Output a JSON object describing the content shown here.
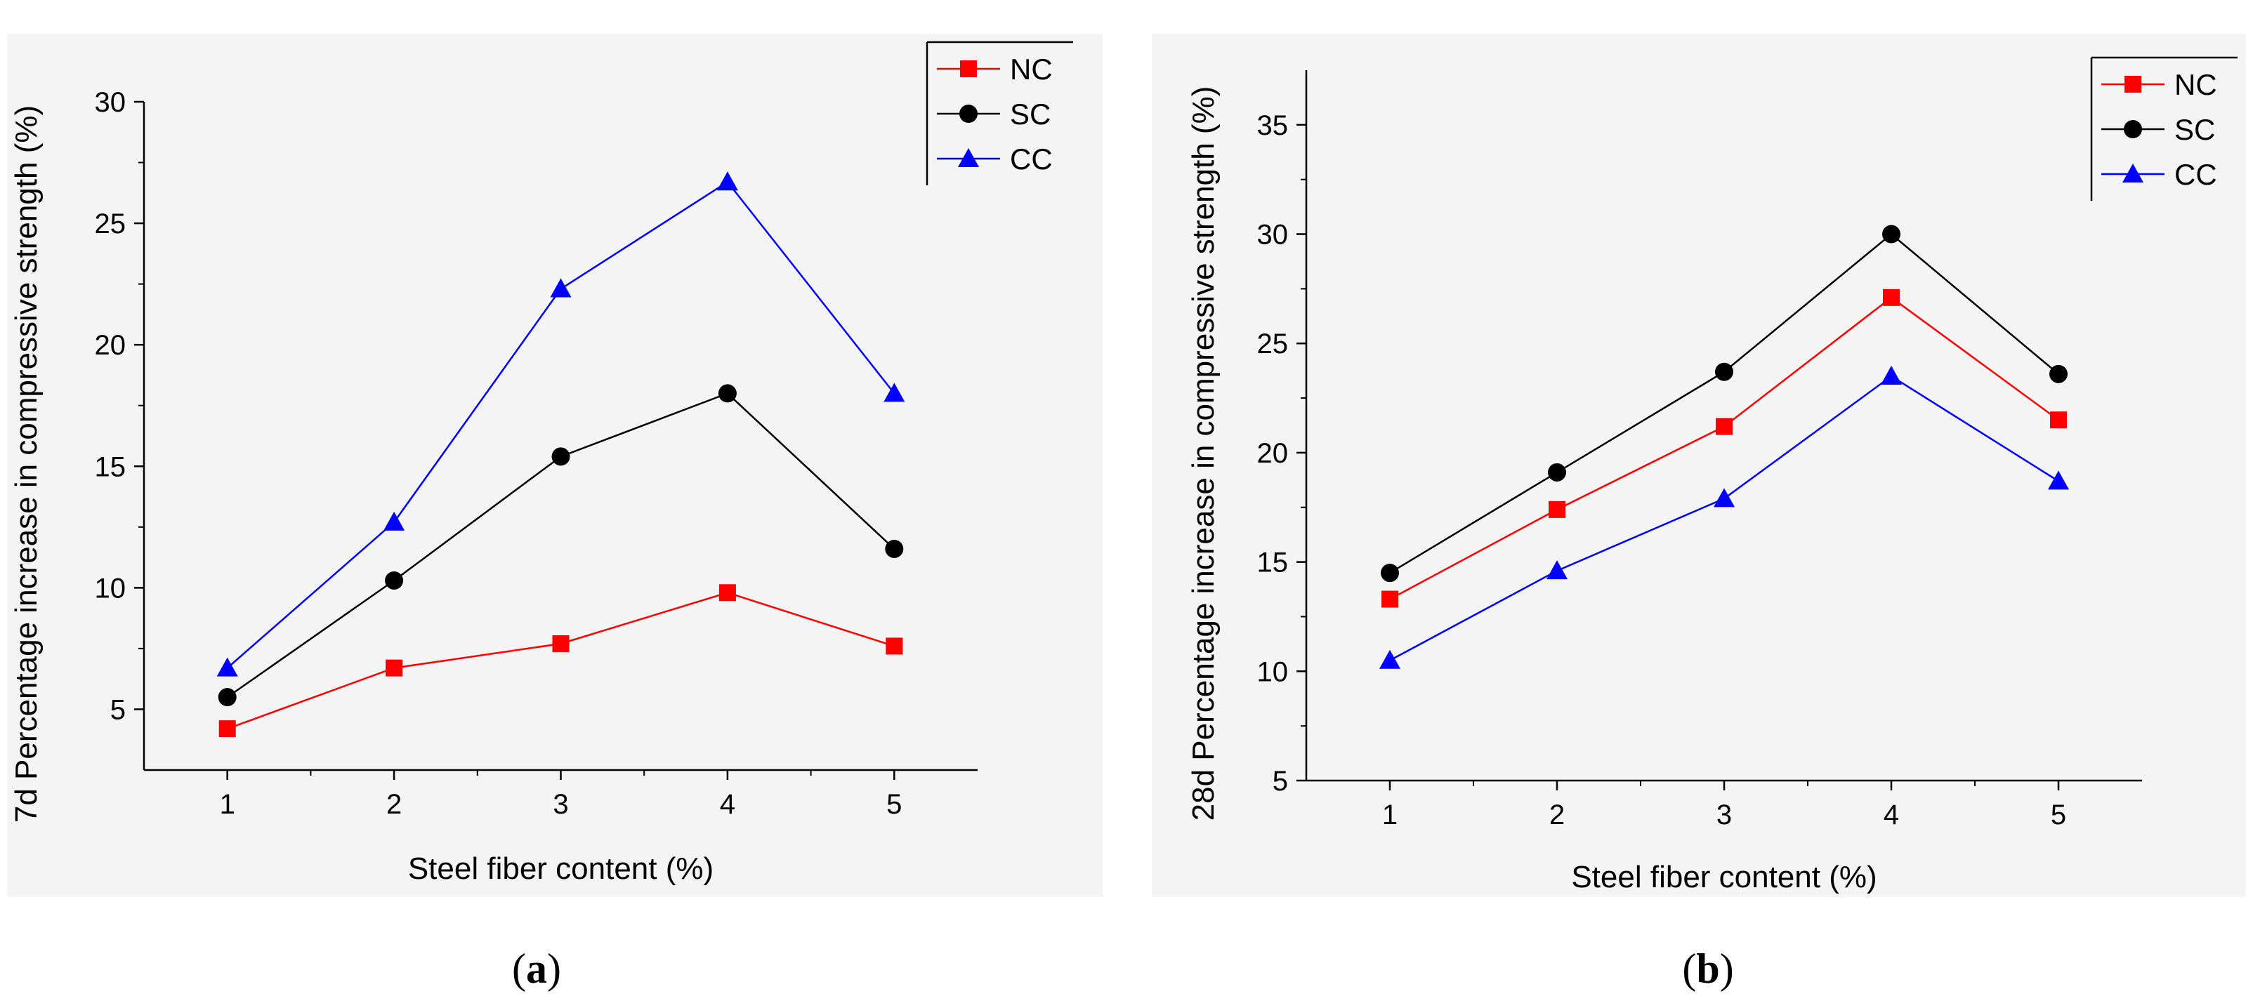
{
  "colors": {
    "NC": "#ff0000",
    "SC": "#000000",
    "CC": "#0000ff"
  },
  "chart_data": [
    {
      "type": "line",
      "panel": "a",
      "caption_open": "(",
      "caption_letter": "a",
      "caption_close": ")",
      "xlabel": "Steel fiber content (%)",
      "ylabel": "7d Percentage increase in compressive strength (%)",
      "x": [
        1,
        2,
        3,
        4,
        5
      ],
      "xlim": [
        0.5,
        5.5
      ],
      "ylim": [
        2.5,
        30
      ],
      "xticks": [
        "1",
        "2",
        "3",
        "4",
        "5"
      ],
      "yticks": [
        "5",
        "10",
        "15",
        "20",
        "25",
        "30"
      ],
      "series": [
        {
          "name": "NC",
          "marker": "square",
          "values": [
            4.2,
            6.7,
            7.7,
            9.8,
            7.6
          ]
        },
        {
          "name": "SC",
          "marker": "circle",
          "values": [
            5.5,
            10.3,
            15.4,
            18.0,
            11.6
          ]
        },
        {
          "name": "CC",
          "marker": "triangle",
          "values": [
            6.7,
            12.7,
            22.3,
            26.7,
            18.0
          ]
        }
      ],
      "legend_position": "top-right"
    },
    {
      "type": "line",
      "panel": "b",
      "caption_open": "(",
      "caption_letter": "b",
      "caption_close": ")",
      "xlabel": "Steel fiber content (%)",
      "ylabel": "28d Percentage increase in compressive strength (%)",
      "x": [
        1,
        2,
        3,
        4,
        5
      ],
      "xlim": [
        0.5,
        5.5
      ],
      "ylim": [
        5,
        37.5
      ],
      "xticks": [
        "1",
        "2",
        "3",
        "4",
        "5"
      ],
      "yticks": [
        "5",
        "10",
        "15",
        "20",
        "25",
        "30",
        "35"
      ],
      "series": [
        {
          "name": "NC",
          "marker": "square",
          "values": [
            13.3,
            17.4,
            21.2,
            27.1,
            21.5
          ]
        },
        {
          "name": "SC",
          "marker": "circle",
          "values": [
            14.5,
            19.1,
            23.7,
            30.0,
            23.6
          ]
        },
        {
          "name": "CC",
          "marker": "triangle",
          "values": [
            10.5,
            14.6,
            17.9,
            23.5,
            18.7
          ]
        }
      ],
      "legend_position": "top-right"
    }
  ]
}
